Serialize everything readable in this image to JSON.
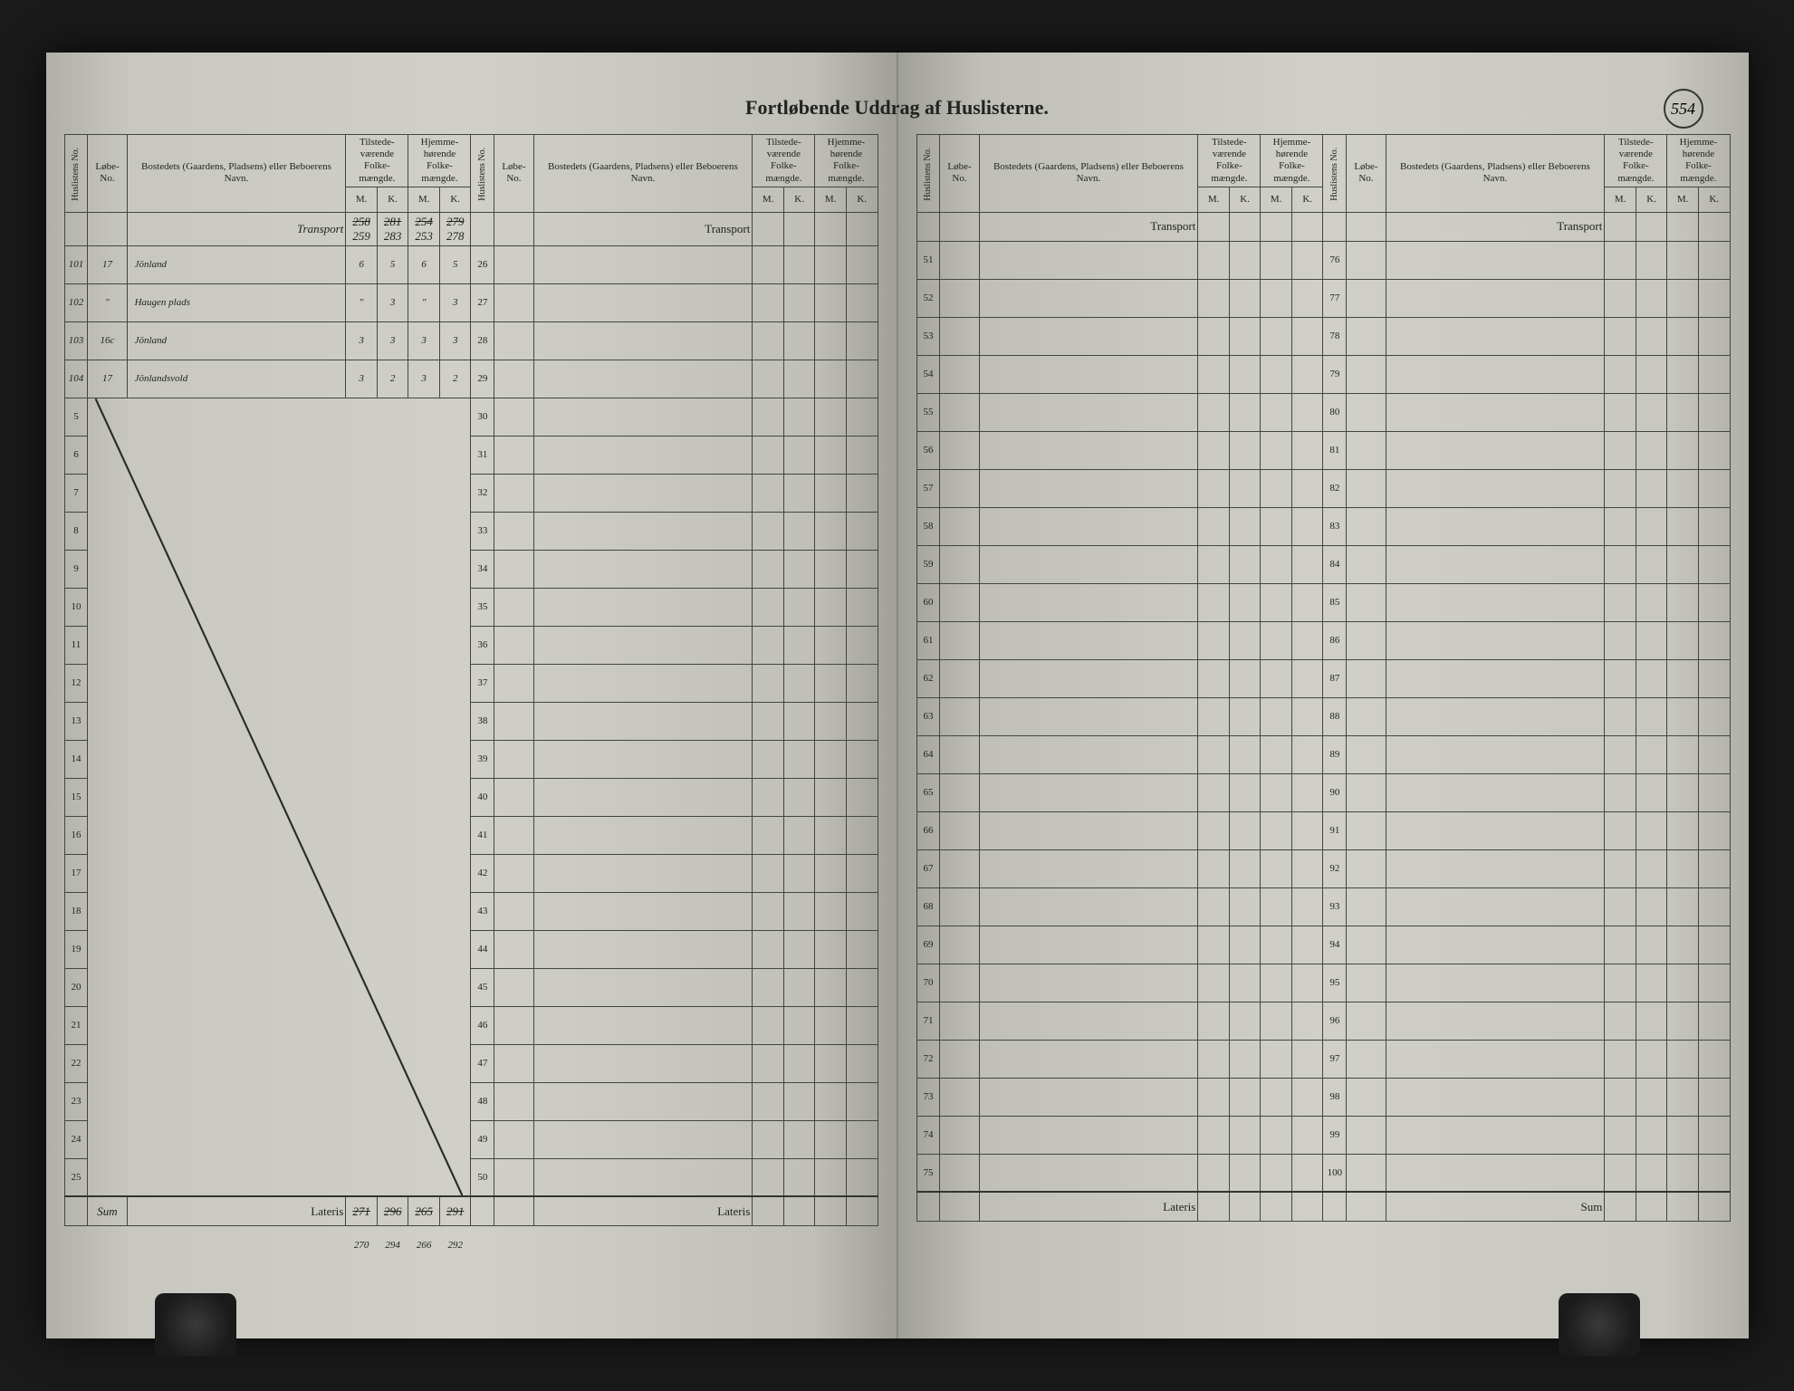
{
  "title": "Fortløbende Uddrag af Huslisterne.",
  "page_number": "554",
  "headers": {
    "huslistens": "Huslistens No.",
    "lobe": "Løbe-\nNo.",
    "bosted": "Bostedets (Gaardens, Pladsens)\neller Beboerens Navn.",
    "tilstede": "Tilstede-\nværende\nFolke-\nmængde.",
    "hjemme": "Hjemme-\nhørende\nFolke-\nmængde.",
    "m": "M.",
    "k": "K."
  },
  "transport_label": "Transport",
  "lateris_label": "Lateris",
  "sum_label": "Sum",
  "left_page": {
    "transport_values_struck": [
      "258",
      "281",
      "254",
      "279"
    ],
    "transport_values_corrected": [
      "259",
      "283",
      "253",
      "278"
    ],
    "rows": [
      {
        "hus": "101",
        "lobe": "17",
        "bosted": "Jönland",
        "tm": "6",
        "tk": "5",
        "hm": "6",
        "hk": "5"
      },
      {
        "hus": "102",
        "lobe": "\"",
        "bosted": "Haugen plads",
        "tm": "\"",
        "tk": "3",
        "hm": "\"",
        "hk": "3"
      },
      {
        "hus": "103",
        "lobe": "16c",
        "bosted": "Jönland",
        "tm": "3",
        "tk": "3",
        "hm": "3",
        "hk": "3"
      },
      {
        "hus": "104",
        "lobe": "17",
        "bosted": "Jönlandsvold",
        "tm": "3",
        "tk": "2",
        "hm": "3",
        "hk": "2"
      }
    ],
    "row_start": 1,
    "row_end": 25,
    "second_block_start": 26,
    "second_block_end": 50,
    "sum_text": "Sum",
    "lateris_struck": [
      "271",
      "296",
      "265",
      "291"
    ],
    "lateris_corrected": [
      "270",
      "294",
      "266",
      "292"
    ]
  },
  "right_page": {
    "block1_start": 51,
    "block1_end": 75,
    "block2_start": 76,
    "block2_end": 100
  },
  "colors": {
    "paper": "#d0d0c8",
    "ink": "#222222",
    "handwriting": "#2a2a2a",
    "border": "#444444",
    "background": "#1a1a1a"
  }
}
